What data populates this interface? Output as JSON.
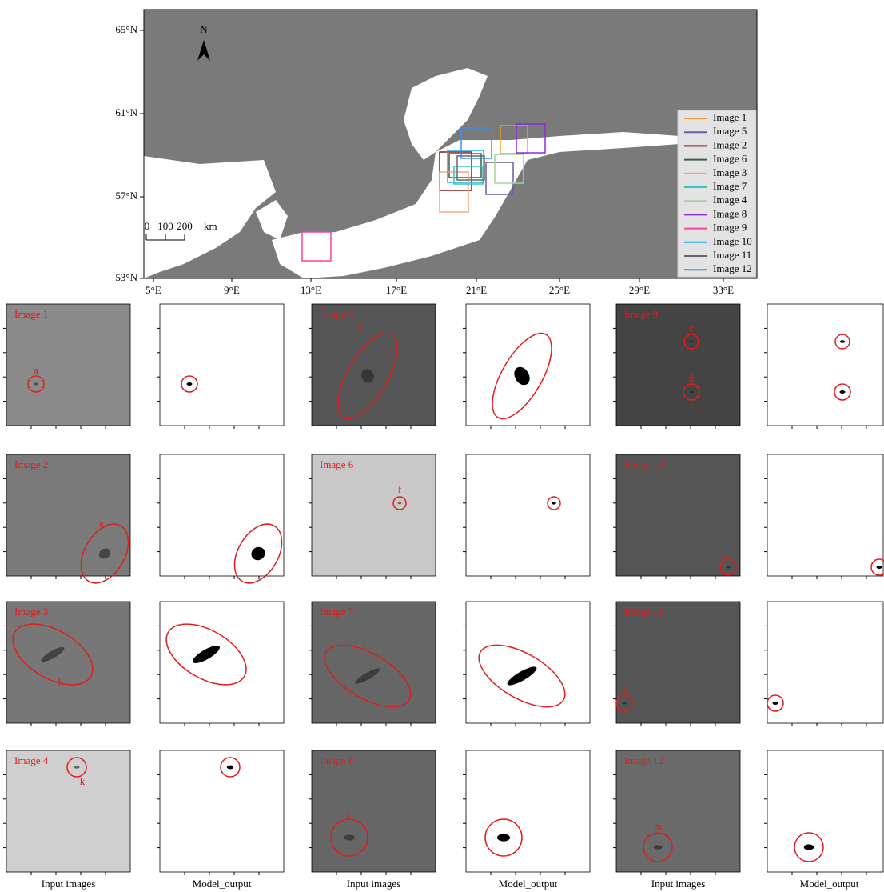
{
  "map": {
    "north": "N",
    "scale_labels": [
      "0",
      "100",
      "200",
      "km"
    ],
    "lat_labels": [
      "65°N",
      "61°N",
      "57°N",
      "53°N"
    ],
    "lon_labels": [
      "5°E",
      "9°E",
      "13°E",
      "17°E",
      "21°E",
      "25°E",
      "29°E",
      "33°E"
    ],
    "legend": [
      {
        "name": "Image 1",
        "color": "#f39c34"
      },
      {
        "name": "Image 5",
        "color": "#6a5aa8"
      },
      {
        "name": "Image 2",
        "color": "#8b1a1a"
      },
      {
        "name": "Image 6",
        "color": "#3d5a4a"
      },
      {
        "name": "Image 3",
        "color": "#f4a582"
      },
      {
        "name": "Image 7",
        "color": "#40c0c0"
      },
      {
        "name": "Image 4",
        "color": "#a6d39a"
      },
      {
        "name": "Image 8",
        "color": "#8a2be2"
      },
      {
        "name": "Image 9",
        "color": "#ff3fa0"
      },
      {
        "name": "Image 10",
        "color": "#1ab0e8"
      },
      {
        "name": "Image 11",
        "color": "#666666"
      },
      {
        "name": "Image 12",
        "color": "#3a8ee6"
      }
    ]
  },
  "panels": [
    {
      "label": "Image 1",
      "markers": [
        "a"
      ]
    },
    {
      "label": "Image 5",
      "markers": [
        "b"
      ]
    },
    {
      "label": "Image 9",
      "markers": [
        "c",
        "d"
      ]
    },
    {
      "label": "Image 2",
      "markers": [
        "e"
      ]
    },
    {
      "label": "Image 6",
      "markers": [
        "f"
      ]
    },
    {
      "label": "Image 10",
      "markers": [
        "g"
      ]
    },
    {
      "label": "Image 3",
      "markers": [
        "h"
      ]
    },
    {
      "label": "Image 7",
      "markers": [
        "i"
      ]
    },
    {
      "label": "Image 11",
      "markers": [
        "j"
      ]
    },
    {
      "label": "Image 4",
      "markers": [
        "k"
      ]
    },
    {
      "label": "Image 8",
      "markers": [
        "l"
      ]
    },
    {
      "label": "Image 12",
      "markers": [
        "m"
      ]
    }
  ],
  "columns": [
    "Input images",
    "Model_output",
    "Input images",
    "Model_output",
    "Input images",
    "Model_output"
  ]
}
